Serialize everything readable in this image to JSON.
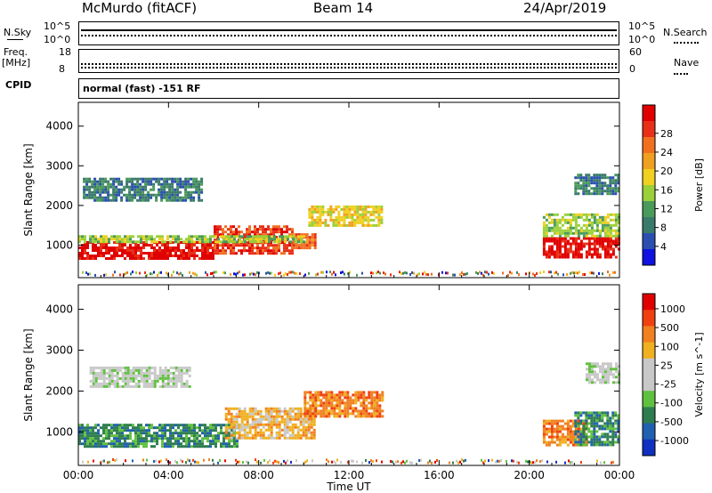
{
  "header": {
    "station": "McMurdo (fitACF)",
    "beam": "Beam 14",
    "date": "24/Apr/2019"
  },
  "strips": {
    "nsky_label": "N.Sky",
    "nsky_top": "10^5",
    "nsky_bottom": "10^0",
    "nsearch_label": "N.Search",
    "nsearch_top": "10^5",
    "nsearch_bottom": "10^0",
    "freq_label_1": "Freq.",
    "freq_label_2": "[MHz]",
    "freq_top": "18",
    "freq_bottom": "8",
    "nave_label": "Nave",
    "nave_top": "60",
    "nave_bottom": "0",
    "cpid_label": "CPID",
    "cpid_text": "normal (fast) -151 RF"
  },
  "colors": {
    "power_scale": [
      "#1010e0",
      "#2a4fb0",
      "#3a7a6a",
      "#4a9a5a",
      "#9ad03a",
      "#f0d020",
      "#f0a020",
      "#f07020",
      "#e83018",
      "#e00000"
    ],
    "velocity_scale": [
      "#1030c0",
      "#2060b0",
      "#2e7d50",
      "#60c040",
      "#c8c8c8",
      "#c8c8c8",
      "#f0b020",
      "#f08020",
      "#f04010",
      "#e00000"
    ]
  },
  "chart_data": [
    {
      "type": "heatmap",
      "title": "Power [dB]",
      "ylabel": "Slant Range [km]",
      "xlabel": "Time UT",
      "x_ticks": [
        "00:00",
        "04:00",
        "08:00",
        "12:00",
        "16:00",
        "20:00",
        "00:00"
      ],
      "x_range_hours": [
        0,
        24
      ],
      "y_ticks": [
        1000,
        2000,
        3000,
        4000
      ],
      "ylim": [
        180,
        4600
      ],
      "colorbar_label": "Power [dB]",
      "colorbar_ticks": [
        "4",
        "8",
        "12",
        "16",
        "20",
        "24",
        "28"
      ],
      "regions": [
        {
          "t0": 0.0,
          "t1": 6.0,
          "r0": 650,
          "r1": 1100,
          "level": 9
        },
        {
          "t0": 6.0,
          "t1": 9.5,
          "r0": 800,
          "r1": 1500,
          "level": 8
        },
        {
          "t0": 9.5,
          "t1": 10.5,
          "r0": 900,
          "r1": 1300,
          "level": 7
        },
        {
          "t0": 0.0,
          "t1": 10.0,
          "r0": 1100,
          "r1": 1250,
          "level": 4
        },
        {
          "t0": 10.2,
          "t1": 13.5,
          "r0": 1500,
          "r1": 2000,
          "level": 5
        },
        {
          "t0": 0.2,
          "t1": 5.5,
          "r0": 2100,
          "r1": 2700,
          "level": 2
        },
        {
          "t0": 20.6,
          "t1": 24.0,
          "r0": 700,
          "r1": 1200,
          "level": 9
        },
        {
          "t0": 20.6,
          "t1": 24.0,
          "r0": 1200,
          "r1": 1800,
          "level": 4
        },
        {
          "t0": 22.0,
          "t1": 24.0,
          "r0": 2300,
          "r1": 2800,
          "level": 2
        }
      ]
    },
    {
      "type": "heatmap",
      "ylabel": "Slant Range [km]",
      "xlabel": "Time UT",
      "x_ticks": [
        "00:00",
        "04:00",
        "08:00",
        "12:00",
        "16:00",
        "20:00",
        "00:00"
      ],
      "x_range_hours": [
        0,
        24
      ],
      "y_ticks": [
        1000,
        2000,
        3000,
        4000
      ],
      "ylim": [
        180,
        4600
      ],
      "colorbar_label": "Velocity [m s^-1]",
      "colorbar_ticks": [
        "1000",
        "500",
        "100",
        "25",
        "-25",
        "-100",
        "-500",
        "-1000"
      ],
      "regions": [
        {
          "t0": 0.0,
          "t1": 7.0,
          "r0": 650,
          "r1": 1200,
          "level": 2
        },
        {
          "t0": 6.5,
          "t1": 10.5,
          "r0": 850,
          "r1": 1600,
          "level": 6
        },
        {
          "t0": 10.0,
          "t1": 13.5,
          "r0": 1400,
          "r1": 2000,
          "level": 7
        },
        {
          "t0": 0.5,
          "t1": 5.0,
          "r0": 2100,
          "r1": 2600,
          "level": 4
        },
        {
          "t0": 20.6,
          "t1": 22.5,
          "r0": 700,
          "r1": 1300,
          "level": 7
        },
        {
          "t0": 22.0,
          "t1": 24.0,
          "r0": 700,
          "r1": 1500,
          "level": 2
        },
        {
          "t0": 22.5,
          "t1": 24.0,
          "r0": 2200,
          "r1": 2700,
          "level": 4
        }
      ]
    }
  ]
}
